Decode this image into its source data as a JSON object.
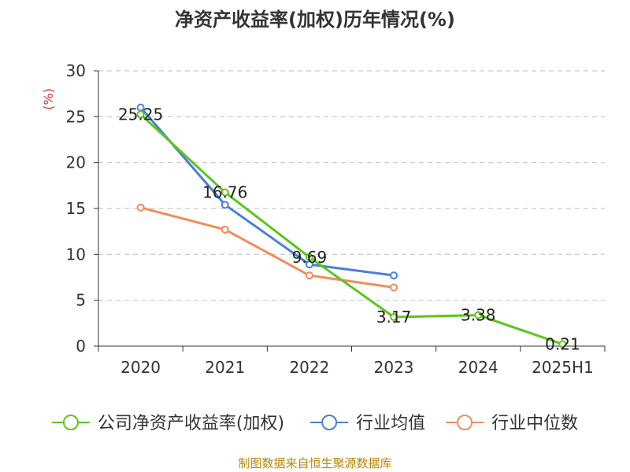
{
  "title": "净资产收益率(加权)历年情况(%)",
  "source": "制图数据来自恒生聚源数据库",
  "chart_data": {
    "type": "line",
    "title": "净资产收益率(加权)历年情况(%)",
    "ylabel": "(%)",
    "xlabel": "",
    "ylim": [
      0,
      30
    ],
    "yticks": [
      "0",
      "5",
      "10",
      "15",
      "20",
      "25",
      "30"
    ],
    "categories": [
      "2020",
      "2021",
      "2022",
      "2023",
      "2024",
      "2025H1"
    ],
    "grid": true,
    "legend_position": "bottom",
    "series": [
      {
        "name": "公司净资产收益率(加权)",
        "color": "#5cc61a",
        "values": [
          25.25,
          16.76,
          9.69,
          3.17,
          3.38,
          0.21
        ],
        "labels": [
          "25.25",
          "16.76",
          "9.69",
          "3.17",
          "3.38",
          "0.21"
        ]
      },
      {
        "name": "行业均值",
        "color": "#4a7fdb",
        "values": [
          26.0,
          15.4,
          8.9,
          7.7,
          null,
          null
        ]
      },
      {
        "name": "行业中位数",
        "color": "#f28c5a",
        "values": [
          15.1,
          12.7,
          7.7,
          6.4,
          null,
          null
        ]
      }
    ]
  }
}
